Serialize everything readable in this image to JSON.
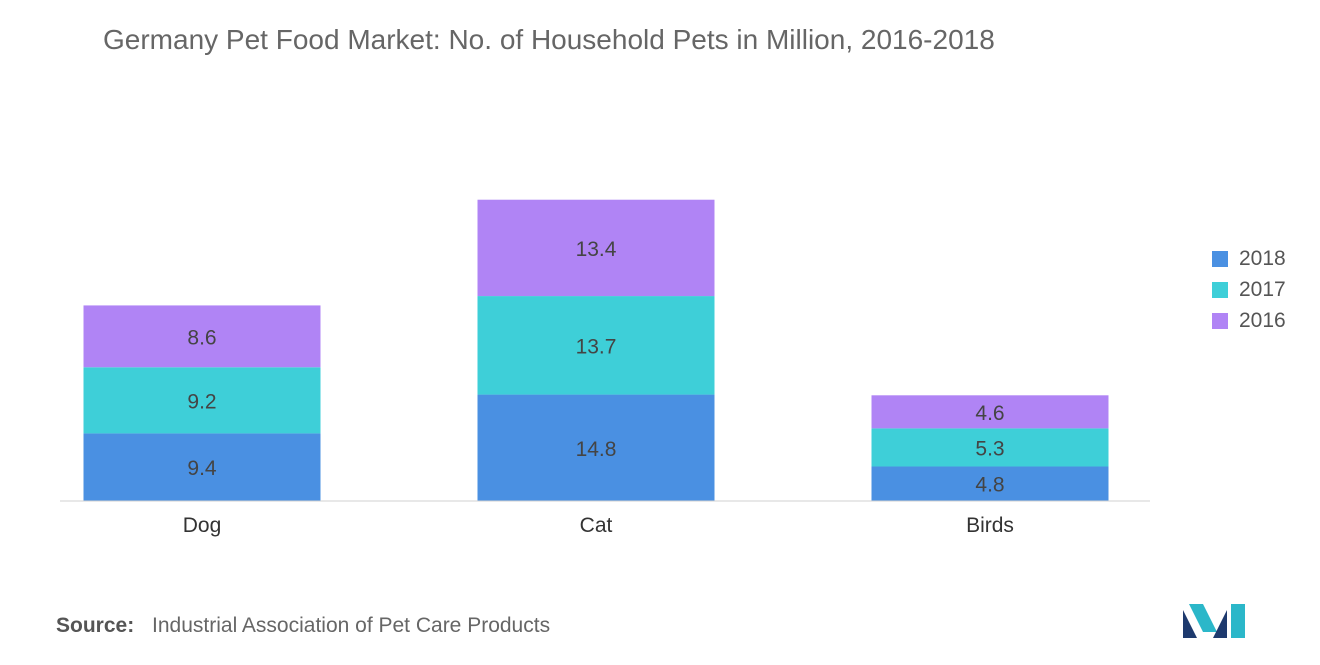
{
  "chart_data": {
    "type": "bar",
    "stacked": true,
    "title": "Germany Pet Food Market: No. of Household Pets in Million, 2016-2018",
    "categories": [
      "Dog",
      "Cat",
      "Birds"
    ],
    "series": [
      {
        "name": "2018",
        "color": "#4a90e2",
        "values": [
          9.4,
          14.8,
          4.8
        ]
      },
      {
        "name": "2017",
        "color": "#3ecfd8",
        "values": [
          9.2,
          13.7,
          5.3
        ]
      },
      {
        "name": "2016",
        "color": "#b084f5",
        "values": [
          8.6,
          13.4,
          4.6
        ]
      }
    ],
    "legend_order": [
      "2018",
      "2017",
      "2016"
    ],
    "legend_position": "right",
    "grid": false,
    "ylim": [
      0,
      42
    ]
  },
  "source": {
    "label": "Source:",
    "text": "Industrial Association of Pet Care Products"
  },
  "logo": {
    "icon": "mordor-intelligence-logo-icon",
    "colors": [
      "#1e3a6e",
      "#2bb7c9"
    ]
  }
}
